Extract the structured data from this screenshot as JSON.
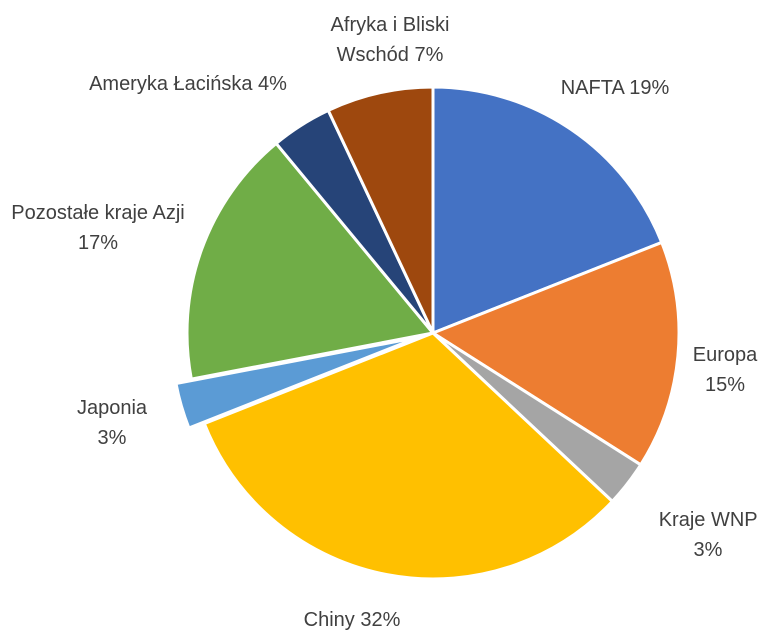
{
  "chart_data": {
    "type": "pie",
    "categories": [
      "NAFTA",
      "Europa",
      "Kraje WNP",
      "Chiny",
      "Japonia",
      "Pozostałe kraje Azji",
      "Ameryka Łacińska",
      "Afryka i Bliski Wschód"
    ],
    "values": [
      19,
      15,
      3,
      32,
      3,
      17,
      4,
      7
    ],
    "value_labels": [
      "19%",
      "15%",
      "3%",
      "32%",
      "3%",
      "17%",
      "4%",
      "7%"
    ],
    "colors": [
      "#4472c4",
      "#ed7d31",
      "#a5a5a5",
      "#ffc000",
      "#5b9bd5",
      "#70ad47",
      "#264478",
      "#9e480e"
    ],
    "exploded": [
      "Japonia"
    ]
  }
}
